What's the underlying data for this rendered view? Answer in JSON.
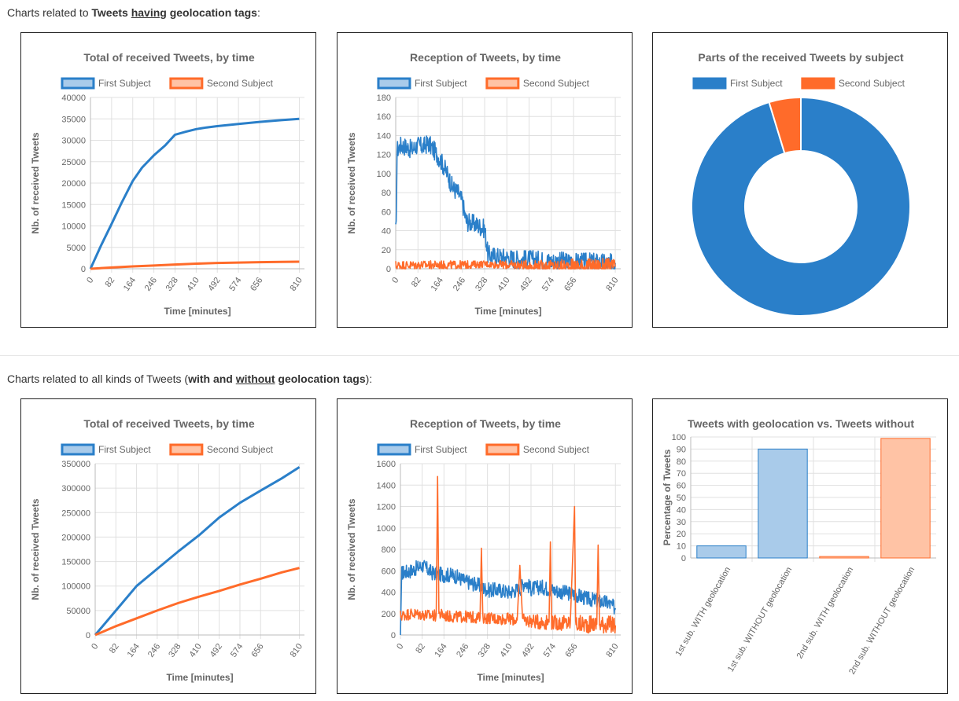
{
  "headings": {
    "sec1": {
      "prefix": "Charts related to ",
      "b1": "Tweets ",
      "b1u": "having",
      "b1rest": " geolocation tags",
      "suffix": ":"
    },
    "sec2": {
      "prefix": "Charts related to all kinds of Tweets (",
      "b1": "with and ",
      "b1u": "without",
      "b1rest": " geolocation tags",
      "suffix": "):"
    }
  },
  "colors": {
    "first": "#2a7fc9",
    "second": "#ff6b2a",
    "firstFill": "#a9cbea",
    "secondFill": "#ffc3a5",
    "grid": "#e0e0e0",
    "text": "#666666"
  },
  "chart_data": [
    {
      "id": "c1",
      "type": "line",
      "title": "Total of received Tweets, by time",
      "legend": [
        "First Subject",
        "Second Subject"
      ],
      "xlabel": "Time [minutes]",
      "ylabel": "Nb. of received Tweets",
      "xlim": [
        0,
        830
      ],
      "ylim": [
        0,
        40000
      ],
      "xticks": [
        0,
        82,
        164,
        246,
        328,
        410,
        492,
        574,
        656,
        810
      ],
      "yticks": [
        0,
        5000,
        10000,
        15000,
        20000,
        25000,
        30000,
        35000,
        40000
      ],
      "series": [
        {
          "name": "First Subject",
          "x": [
            0,
            40,
            82,
            120,
            164,
            200,
            246,
            290,
            328,
            370,
            410,
            450,
            492,
            574,
            656,
            740,
            810
          ],
          "y": [
            0,
            5300,
            10500,
            15300,
            20500,
            23600,
            26500,
            28800,
            31300,
            32000,
            32600,
            33000,
            33300,
            33800,
            34300,
            34700,
            35000
          ]
        },
        {
          "name": "Second Subject",
          "x": [
            0,
            82,
            164,
            246,
            328,
            410,
            492,
            574,
            656,
            740,
            810
          ],
          "y": [
            0,
            300,
            550,
            750,
            1000,
            1200,
            1350,
            1450,
            1550,
            1600,
            1650
          ]
        }
      ]
    },
    {
      "id": "c2",
      "type": "line",
      "title": "Reception of Tweets, by time",
      "legend": [
        "First Subject",
        "Second Subject"
      ],
      "xlabel": "Time [minutes]",
      "ylabel": "Nb. of received Tweets",
      "xlim": [
        0,
        830
      ],
      "ylim": [
        0,
        180
      ],
      "xticks": [
        0,
        82,
        164,
        246,
        328,
        410,
        492,
        574,
        656,
        810
      ],
      "yticks": [
        0,
        20,
        40,
        60,
        80,
        100,
        120,
        140,
        160,
        180
      ],
      "series": [
        {
          "name": "First Subject",
          "x": [
            0,
            5,
            20,
            40,
            60,
            80,
            100,
            120,
            140,
            164,
            190,
            210,
            230,
            246,
            260,
            280,
            300,
            328,
            340,
            370,
            410,
            450,
            492,
            540,
            574,
            620,
            656,
            700,
            740,
            780,
            810
          ],
          "y": [
            0,
            125,
            130,
            128,
            125,
            130,
            128,
            132,
            125,
            115,
            100,
            85,
            80,
            70,
            50,
            48,
            46,
            42,
            15,
            13,
            12,
            10,
            10,
            9,
            8,
            8,
            7,
            7,
            7,
            6,
            6
          ]
        },
        {
          "name": "Second Subject",
          "x": [
            0,
            82,
            164,
            246,
            328,
            410,
            492,
            574,
            656,
            740,
            810
          ],
          "y": [
            3,
            4,
            4,
            4,
            5,
            4,
            3,
            3,
            2,
            2,
            2
          ]
        }
      ]
    },
    {
      "id": "c3",
      "type": "pie",
      "title": "Parts of the received Tweets by subject",
      "legend": [
        "First Subject",
        "Second Subject"
      ],
      "values": [
        95.3,
        4.7
      ]
    },
    {
      "id": "c4",
      "type": "line",
      "title": "Total of received Tweets, by time",
      "legend": [
        "First Subject",
        "Second Subject"
      ],
      "xlabel": "Time [minutes]",
      "ylabel": "Nb. of received Tweets",
      "xlim": [
        0,
        830
      ],
      "ylim": [
        0,
        350000
      ],
      "xticks": [
        0,
        82,
        164,
        246,
        328,
        410,
        492,
        574,
        656,
        810
      ],
      "yticks": [
        0,
        50000,
        100000,
        150000,
        200000,
        250000,
        300000,
        350000
      ],
      "series": [
        {
          "name": "First Subject",
          "x": [
            0,
            82,
            164,
            246,
            328,
            410,
            492,
            574,
            656,
            740,
            810
          ],
          "y": [
            0,
            50000,
            100000,
            135000,
            170000,
            203000,
            240000,
            270000,
            295000,
            320000,
            343000
          ]
        },
        {
          "name": "Second Subject",
          "x": [
            0,
            82,
            164,
            246,
            328,
            410,
            492,
            574,
            656,
            740,
            810
          ],
          "y": [
            0,
            18000,
            34000,
            50000,
            65000,
            78000,
            90000,
            103000,
            115000,
            128000,
            137000
          ]
        }
      ]
    },
    {
      "id": "c5",
      "type": "line",
      "title": "Reception of Tweets, by time",
      "legend": [
        "First Subject",
        "Second Subject"
      ],
      "xlabel": "Time [minutes]",
      "ylabel": "Nb. of received Tweets",
      "xlim": [
        0,
        830
      ],
      "ylim": [
        0,
        1600
      ],
      "xticks": [
        0,
        82,
        164,
        246,
        328,
        410,
        492,
        574,
        656,
        810
      ],
      "yticks": [
        0,
        200,
        400,
        600,
        800,
        1000,
        1200,
        1400,
        1600
      ],
      "series": [
        {
          "name": "First Subject",
          "x": [
            0,
            5,
            40,
            82,
            120,
            164,
            200,
            246,
            290,
            328,
            370,
            410,
            450,
            470,
            492,
            530,
            574,
            610,
            656,
            700,
            740,
            780,
            810
          ],
          "y": [
            0,
            580,
            600,
            650,
            580,
            560,
            560,
            500,
            470,
            420,
            420,
            400,
            430,
            500,
            430,
            450,
            420,
            400,
            380,
            340,
            320,
            300,
            250
          ]
        },
        {
          "name": "Second Subject",
          "x": [
            0,
            40,
            82,
            120,
            135,
            140,
            145,
            164,
            200,
            246,
            300,
            305,
            310,
            328,
            370,
            410,
            440,
            450,
            460,
            492,
            530,
            560,
            565,
            570,
            600,
            640,
            656,
            660,
            665,
            700,
            740,
            745,
            750,
            780,
            810
          ],
          "y": [
            180,
            200,
            190,
            180,
            180,
            1480,
            200,
            180,
            170,
            170,
            160,
            810,
            160,
            160,
            150,
            150,
            140,
            650,
            140,
            130,
            120,
            120,
            870,
            120,
            110,
            110,
            1200,
            110,
            100,
            100,
            100,
            840,
            100,
            100,
            90
          ]
        }
      ]
    },
    {
      "id": "c6",
      "type": "bar",
      "title": "Tweets with geolocation vs. Tweets without",
      "ylabel": "Percentage of Tweets",
      "ylim": [
        0,
        100
      ],
      "yticks": [
        0,
        10,
        20,
        30,
        40,
        50,
        60,
        70,
        80,
        90,
        100
      ],
      "categories": [
        "1st sub. WITH geolocation",
        "1st sub. WITHOUT geolocation",
        "2nd sub. WITH geolocation",
        "2nd sub. WITHOUT geolocation"
      ],
      "values": [
        10,
        90,
        1.2,
        98.8
      ]
    }
  ]
}
